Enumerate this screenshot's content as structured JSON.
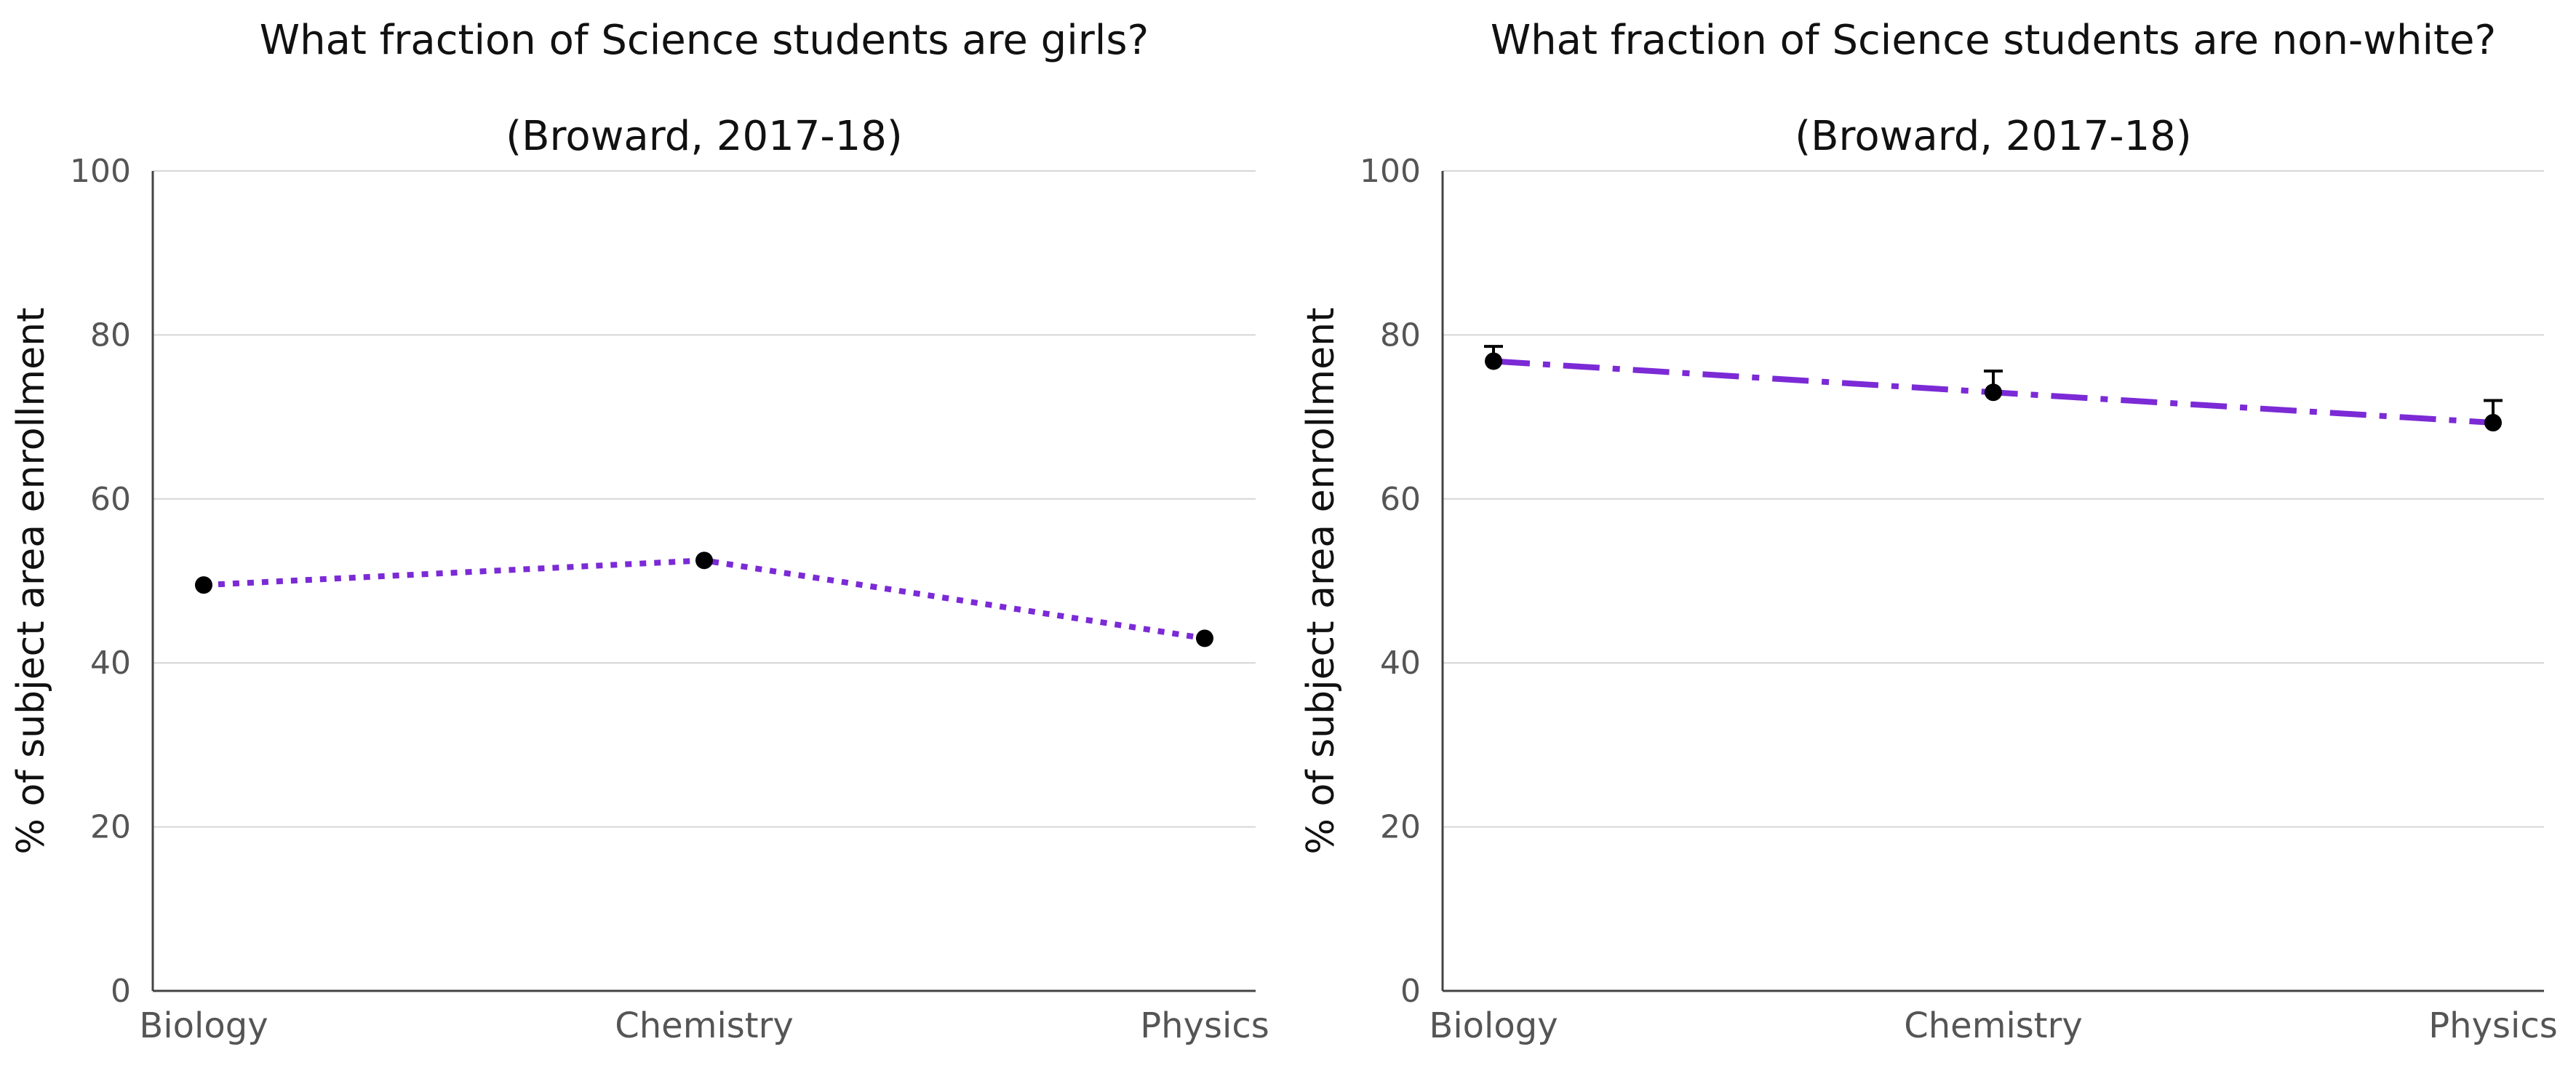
{
  "chart_data": [
    {
      "type": "line",
      "title": "What fraction of Science students are girls?",
      "subtitle": "(Broward, 2017-18)",
      "xlabel": "",
      "ylabel": "% of subject area enrollment",
      "categories": [
        "Biology",
        "Chemistry",
        "Physics"
      ],
      "series": [
        {
          "values": [
            49.5,
            52.5,
            43.0
          ],
          "line_style": "dotted",
          "color": "#7b2ad6"
        }
      ],
      "ylim": [
        0,
        100
      ],
      "yticks": [
        0,
        20,
        40,
        60,
        80,
        100
      ],
      "grid": true,
      "legend": "none"
    },
    {
      "type": "line",
      "title": "What fraction of Science students are non-white?",
      "subtitle": "(Broward, 2017-18)",
      "xlabel": "",
      "ylabel": "% of subject area enrollment",
      "categories": [
        "Biology",
        "Chemistry",
        "Physics"
      ],
      "series": [
        {
          "values": [
            76.8,
            73.0,
            69.3
          ],
          "error_upper": [
            78.6,
            75.6,
            72.0
          ],
          "line_style": "dash-dot",
          "color": "#7b2ad6"
        }
      ],
      "ylim": [
        0,
        100
      ],
      "yticks": [
        0,
        20,
        40,
        60,
        80,
        100
      ],
      "grid": true,
      "legend": "none"
    }
  ]
}
